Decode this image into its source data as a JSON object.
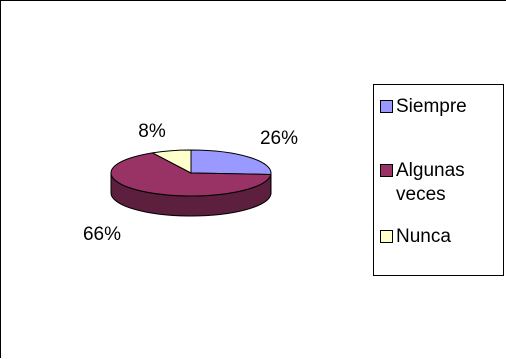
{
  "chart_data": {
    "type": "pie",
    "style": "3d",
    "slices": [
      {
        "label": "Siempre",
        "value": 26,
        "percent_label": "26%",
        "color": "#9999FF",
        "side_color": "#5B5B99"
      },
      {
        "label": "Algunas veces",
        "value": 66,
        "percent_label": "66%",
        "color": "#993366",
        "side_color": "#5C1F3D"
      },
      {
        "label": "Nunca",
        "value": 8,
        "percent_label": "8%",
        "color": "#FFFFCC",
        "side_color": "#99997A"
      }
    ],
    "legend": {
      "placement": "right",
      "items": [
        "Siempre",
        "Algunas veces",
        "Nunca"
      ]
    }
  }
}
